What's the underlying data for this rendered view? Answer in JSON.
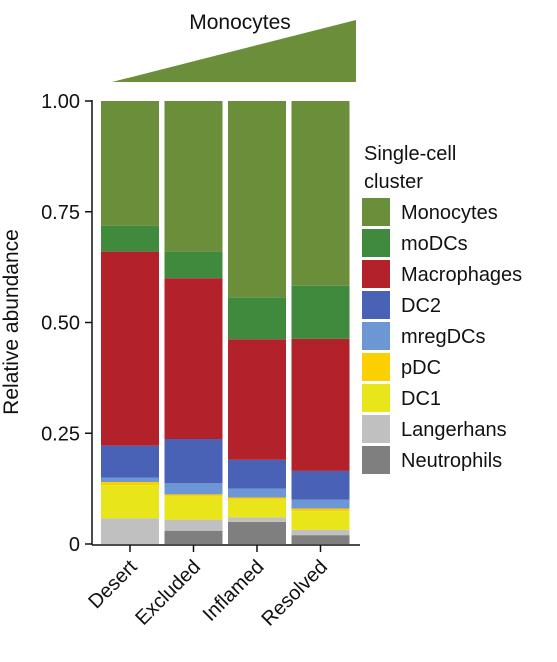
{
  "chart_data": {
    "type": "bar",
    "stacked": true,
    "title": "",
    "header_label": "Monocytes",
    "xlabel": "",
    "ylabel": "Relative abundance",
    "ylim": [
      0,
      1
    ],
    "yticks": [
      {
        "value": 0,
        "label": "0"
      },
      {
        "value": 0.25,
        "label": "0.25"
      },
      {
        "value": 0.5,
        "label": "0.50"
      },
      {
        "value": 0.75,
        "label": "0.75"
      },
      {
        "value": 1.0,
        "label": "1.00"
      }
    ],
    "grid": false,
    "legend_position": "right",
    "legend_title": [
      "Single-cell",
      "cluster"
    ],
    "categories": [
      "Desert",
      "Excluded",
      "Inflamed",
      "Resolved"
    ],
    "series": [
      {
        "name": "Neutrophils",
        "color": "#7f7f7f",
        "values": [
          0.0,
          0.03,
          0.05,
          0.02
        ]
      },
      {
        "name": "Langerhans",
        "color": "#c0c0c0",
        "values": [
          0.058,
          0.025,
          0.01,
          0.012
        ]
      },
      {
        "name": "DC1",
        "color": "#e8e61a",
        "values": [
          0.075,
          0.052,
          0.04,
          0.042
        ]
      },
      {
        "name": "pDC",
        "color": "#fcd000",
        "values": [
          0.007,
          0.005,
          0.005,
          0.006
        ]
      },
      {
        "name": "mregDCs",
        "color": "#6d96d4",
        "values": [
          0.01,
          0.025,
          0.02,
          0.02
        ]
      },
      {
        "name": "DC2",
        "color": "#4a62b5",
        "values": [
          0.072,
          0.1,
          0.065,
          0.065
        ]
      },
      {
        "name": "Macrophages",
        "color": "#b3222a",
        "values": [
          0.438,
          0.363,
          0.272,
          0.298
        ]
      },
      {
        "name": "moDCs",
        "color": "#3f8a3c",
        "values": [
          0.058,
          0.06,
          0.095,
          0.12
        ]
      },
      {
        "name": "Monocytes",
        "color": "#6b8e3a",
        "values": [
          0.282,
          0.34,
          0.443,
          0.417
        ]
      }
    ],
    "legend_order": [
      "Monocytes",
      "moDCs",
      "Macrophages",
      "DC2",
      "mregDCs",
      "pDC",
      "DC1",
      "Langerhans",
      "Neutrophils"
    ]
  },
  "wedge_color": "#6b8e3a"
}
